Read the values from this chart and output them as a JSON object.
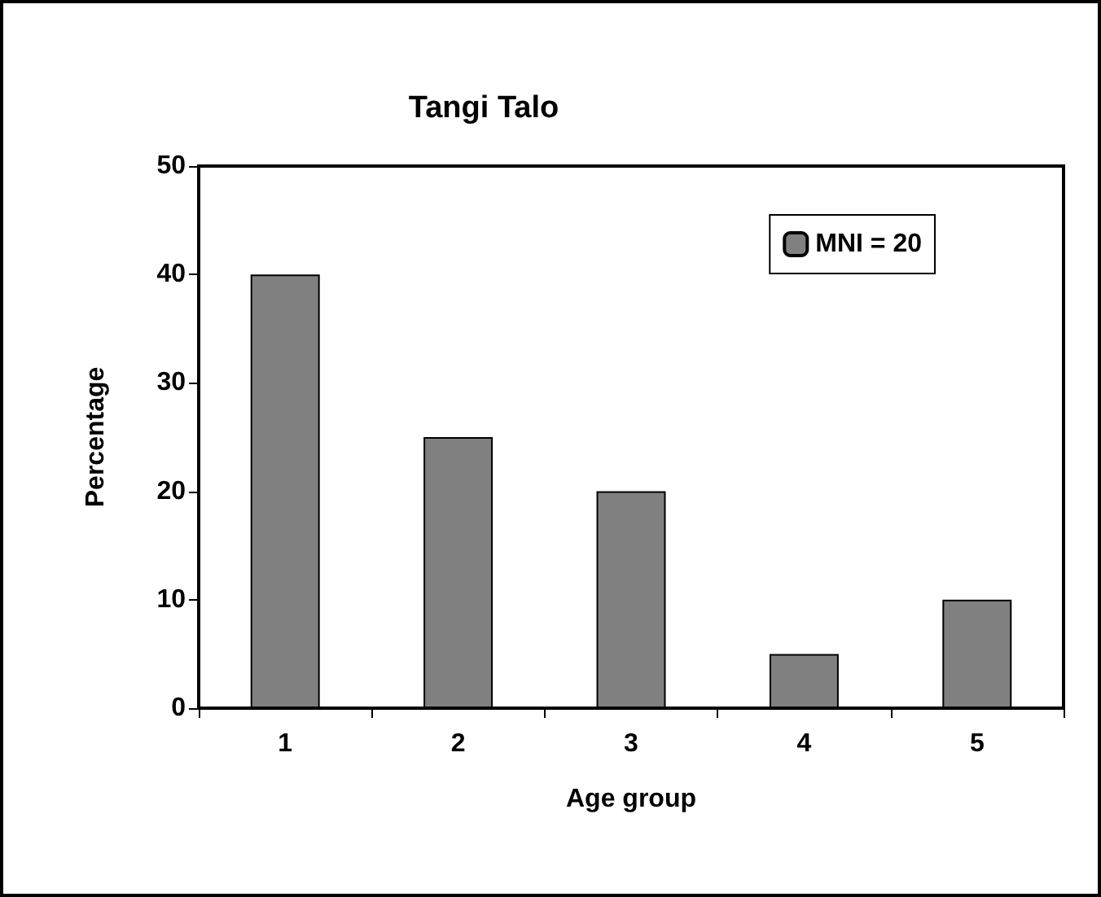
{
  "chart_data": {
    "type": "bar",
    "title": "Tangi Talo",
    "xlabel": "Age group",
    "ylabel": "Percentage",
    "categories": [
      "1",
      "2",
      "3",
      "4",
      "5"
    ],
    "series": [
      {
        "name": "MNI = 20",
        "color": "#808080",
        "values": [
          40,
          25,
          20,
          5,
          10
        ]
      }
    ],
    "ylim": [
      0,
      50
    ],
    "yticks": [
      0,
      10,
      20,
      30,
      40,
      50
    ],
    "grid": false,
    "legend": "top right"
  }
}
